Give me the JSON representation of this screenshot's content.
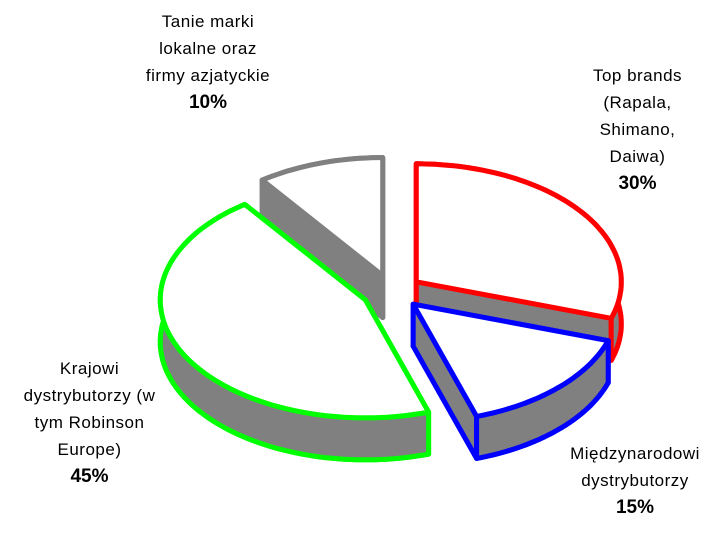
{
  "chart_data": {
    "type": "pie3d",
    "categories": [
      "Top brands (Rapala, Shimano, Daiwa)",
      "Międzynarodowi dystrybutorzy",
      "Krajowi dystrybutorzy (w tym Robinson Europe)",
      "Tanie marki lokalne oraz firmy azjatyckie"
    ],
    "values": [
      30,
      15,
      45,
      10
    ],
    "value_labels": [
      "30%",
      "15%",
      "45%",
      "10%"
    ],
    "colors": [
      "#ff0000",
      "#0000ff",
      "#00ff00",
      "#808080"
    ]
  }
}
